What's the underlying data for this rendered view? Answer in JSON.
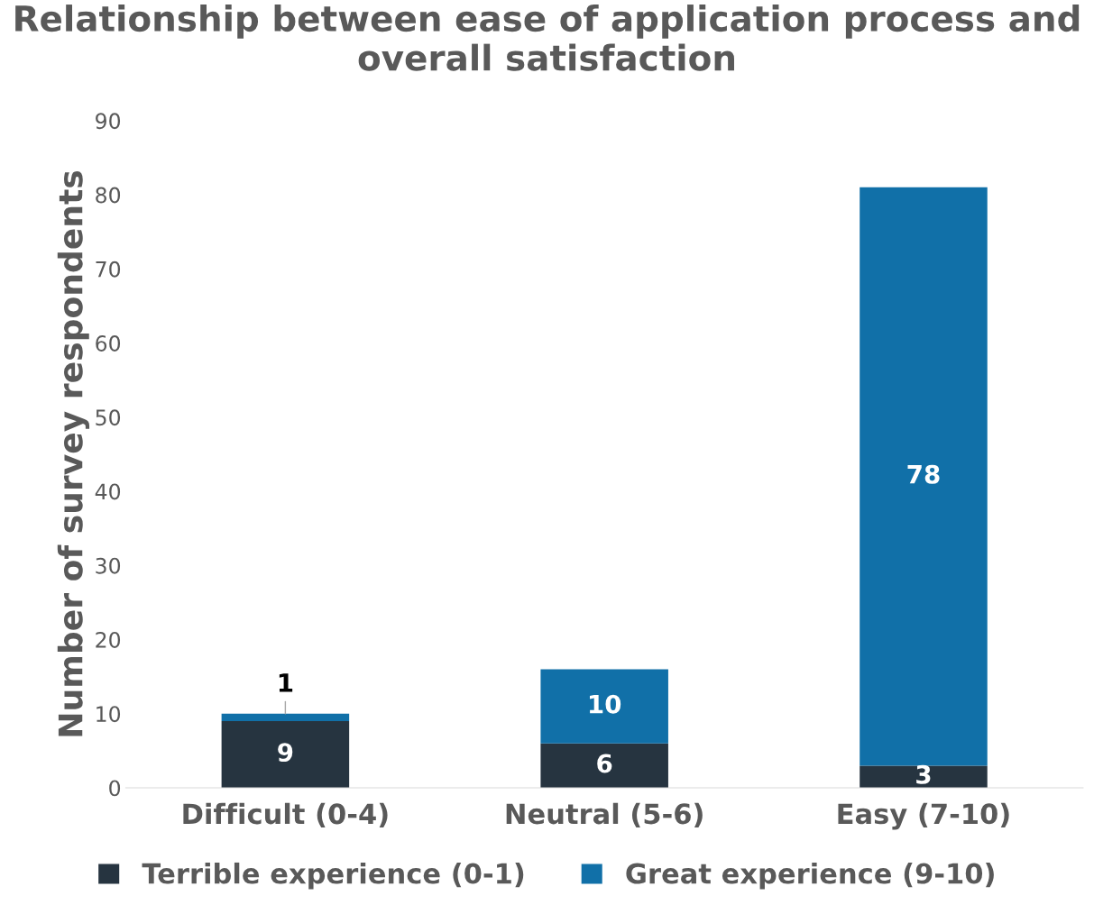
{
  "chart_data": {
    "type": "bar",
    "title": "Relationship between ease of application process and overall satisfaction",
    "ylabel": "Number of survey respondents",
    "categories": [
      "Difficult (0-4)",
      "Neutral (5-6)",
      "Easy (7-10)"
    ],
    "series": [
      {
        "name": "Terrible experience (0-1)",
        "color": "#263440",
        "values": [
          9,
          6,
          3
        ]
      },
      {
        "name": "Great experience (9-10)",
        "color": "#1170a8",
        "values": [
          1,
          10,
          78
        ]
      }
    ],
    "stacked": true,
    "ylim": [
      0,
      90
    ],
    "yticks": [
      0,
      10,
      20,
      30,
      40,
      50,
      60,
      70,
      80,
      90
    ],
    "grid": false,
    "legend": "bottom",
    "data_labels": true
  }
}
